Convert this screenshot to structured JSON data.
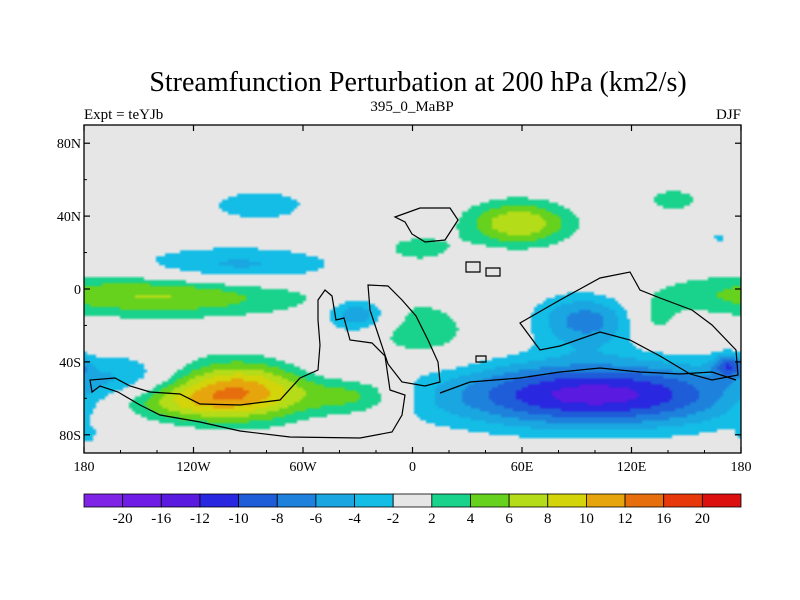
{
  "chart_data": {
    "type": "heatmap",
    "title": "Streamfunction Perturbation at 200 hPa (km2/s)",
    "left_string": "Expt = teYJb",
    "center_string": "395_0_MaBP",
    "right_string": "DJF",
    "x_range": [
      -180,
      180
    ],
    "y_range": [
      -90,
      90
    ],
    "x_ticks": [
      {
        "value": -180,
        "label": "180"
      },
      {
        "value": -120,
        "label": "120W"
      },
      {
        "value": -60,
        "label": "60W"
      },
      {
        "value": 0,
        "label": "0"
      },
      {
        "value": 60,
        "label": "60E"
      },
      {
        "value": 120,
        "label": "120E"
      },
      {
        "value": 180,
        "label": "180"
      }
    ],
    "y_ticks": [
      {
        "value": 80,
        "label": "80N"
      },
      {
        "value": 40,
        "label": "40N"
      },
      {
        "value": 0,
        "label": "0"
      },
      {
        "value": -40,
        "label": "40S"
      },
      {
        "value": -80,
        "label": "80S"
      }
    ],
    "colorbar": {
      "colors": [
        "#7f23e6",
        "#6f1ce6",
        "#5a1ae0",
        "#2a27e0",
        "#1f5cd8",
        "#1e82dc",
        "#1aa6e0",
        "#13bde6",
        "#e6e6e6",
        "#19d28c",
        "#66d21e",
        "#b4dc18",
        "#d4d40a",
        "#e6a50c",
        "#e66e0c",
        "#e6380a",
        "#dd1010"
      ],
      "labels": [
        "-20",
        "-16",
        "-12",
        "-10",
        "-8",
        "-6",
        "-4",
        "-2",
        "2",
        "4",
        "6",
        "8",
        "10",
        "12",
        "16",
        "20"
      ]
    },
    "features": [
      {
        "lon": -98,
        "lat": 12,
        "rx": 58,
        "ry": 11,
        "amp": -5
      },
      {
        "lon": -84,
        "lat": 46,
        "rx": 26,
        "ry": 8,
        "amp": -4
      },
      {
        "lon": 3,
        "lat": 22,
        "rx": 22,
        "ry": 8,
        "amp": 3
      },
      {
        "lon": 58,
        "lat": 36,
        "rx": 28,
        "ry": 12,
        "amp": 8
      },
      {
        "lon": 143,
        "lat": 49,
        "rx": 18,
        "ry": 7,
        "amp": 3
      },
      {
        "lon": 168,
        "lat": 28,
        "rx": 5,
        "ry": 3,
        "amp": -2.5
      },
      {
        "lon": -138,
        "lat": -3,
        "rx": 80,
        "ry": 12,
        "amp": 6.5
      },
      {
        "lon": -150,
        "lat": -50,
        "rx": 30,
        "ry": 14,
        "amp": -3.5
      },
      {
        "lon": -30,
        "lat": -14,
        "rx": 18,
        "ry": 10,
        "amp": -7
      },
      {
        "lon": -35,
        "lat": -50,
        "rx": 38,
        "ry": 20,
        "amp": -4
      },
      {
        "lon": -2,
        "lat": -26,
        "rx": 40,
        "ry": 22,
        "amp": 3.5
      },
      {
        "lon": 95,
        "lat": -17,
        "rx": 28,
        "ry": 15,
        "amp": -7
      },
      {
        "lon": 132,
        "lat": -18,
        "rx": 14,
        "ry": 12,
        "amp": 3
      },
      {
        "lon": -95,
        "lat": -56,
        "rx": 45,
        "ry": 16,
        "amp": 12
      },
      {
        "lon": -140,
        "lat": -62,
        "rx": 40,
        "ry": 10,
        "amp": 5
      },
      {
        "lon": -30,
        "lat": -58,
        "rx": 28,
        "ry": 12,
        "amp": 7
      },
      {
        "lon": 100,
        "lat": -58,
        "rx": 85,
        "ry": 18,
        "amp": -13
      },
      {
        "lon": 173,
        "lat": -42,
        "rx": 8,
        "ry": 6,
        "amp": -7
      },
      {
        "lon": -178,
        "lat": -80,
        "rx": 4,
        "ry": 4,
        "amp": -3
      }
    ]
  }
}
